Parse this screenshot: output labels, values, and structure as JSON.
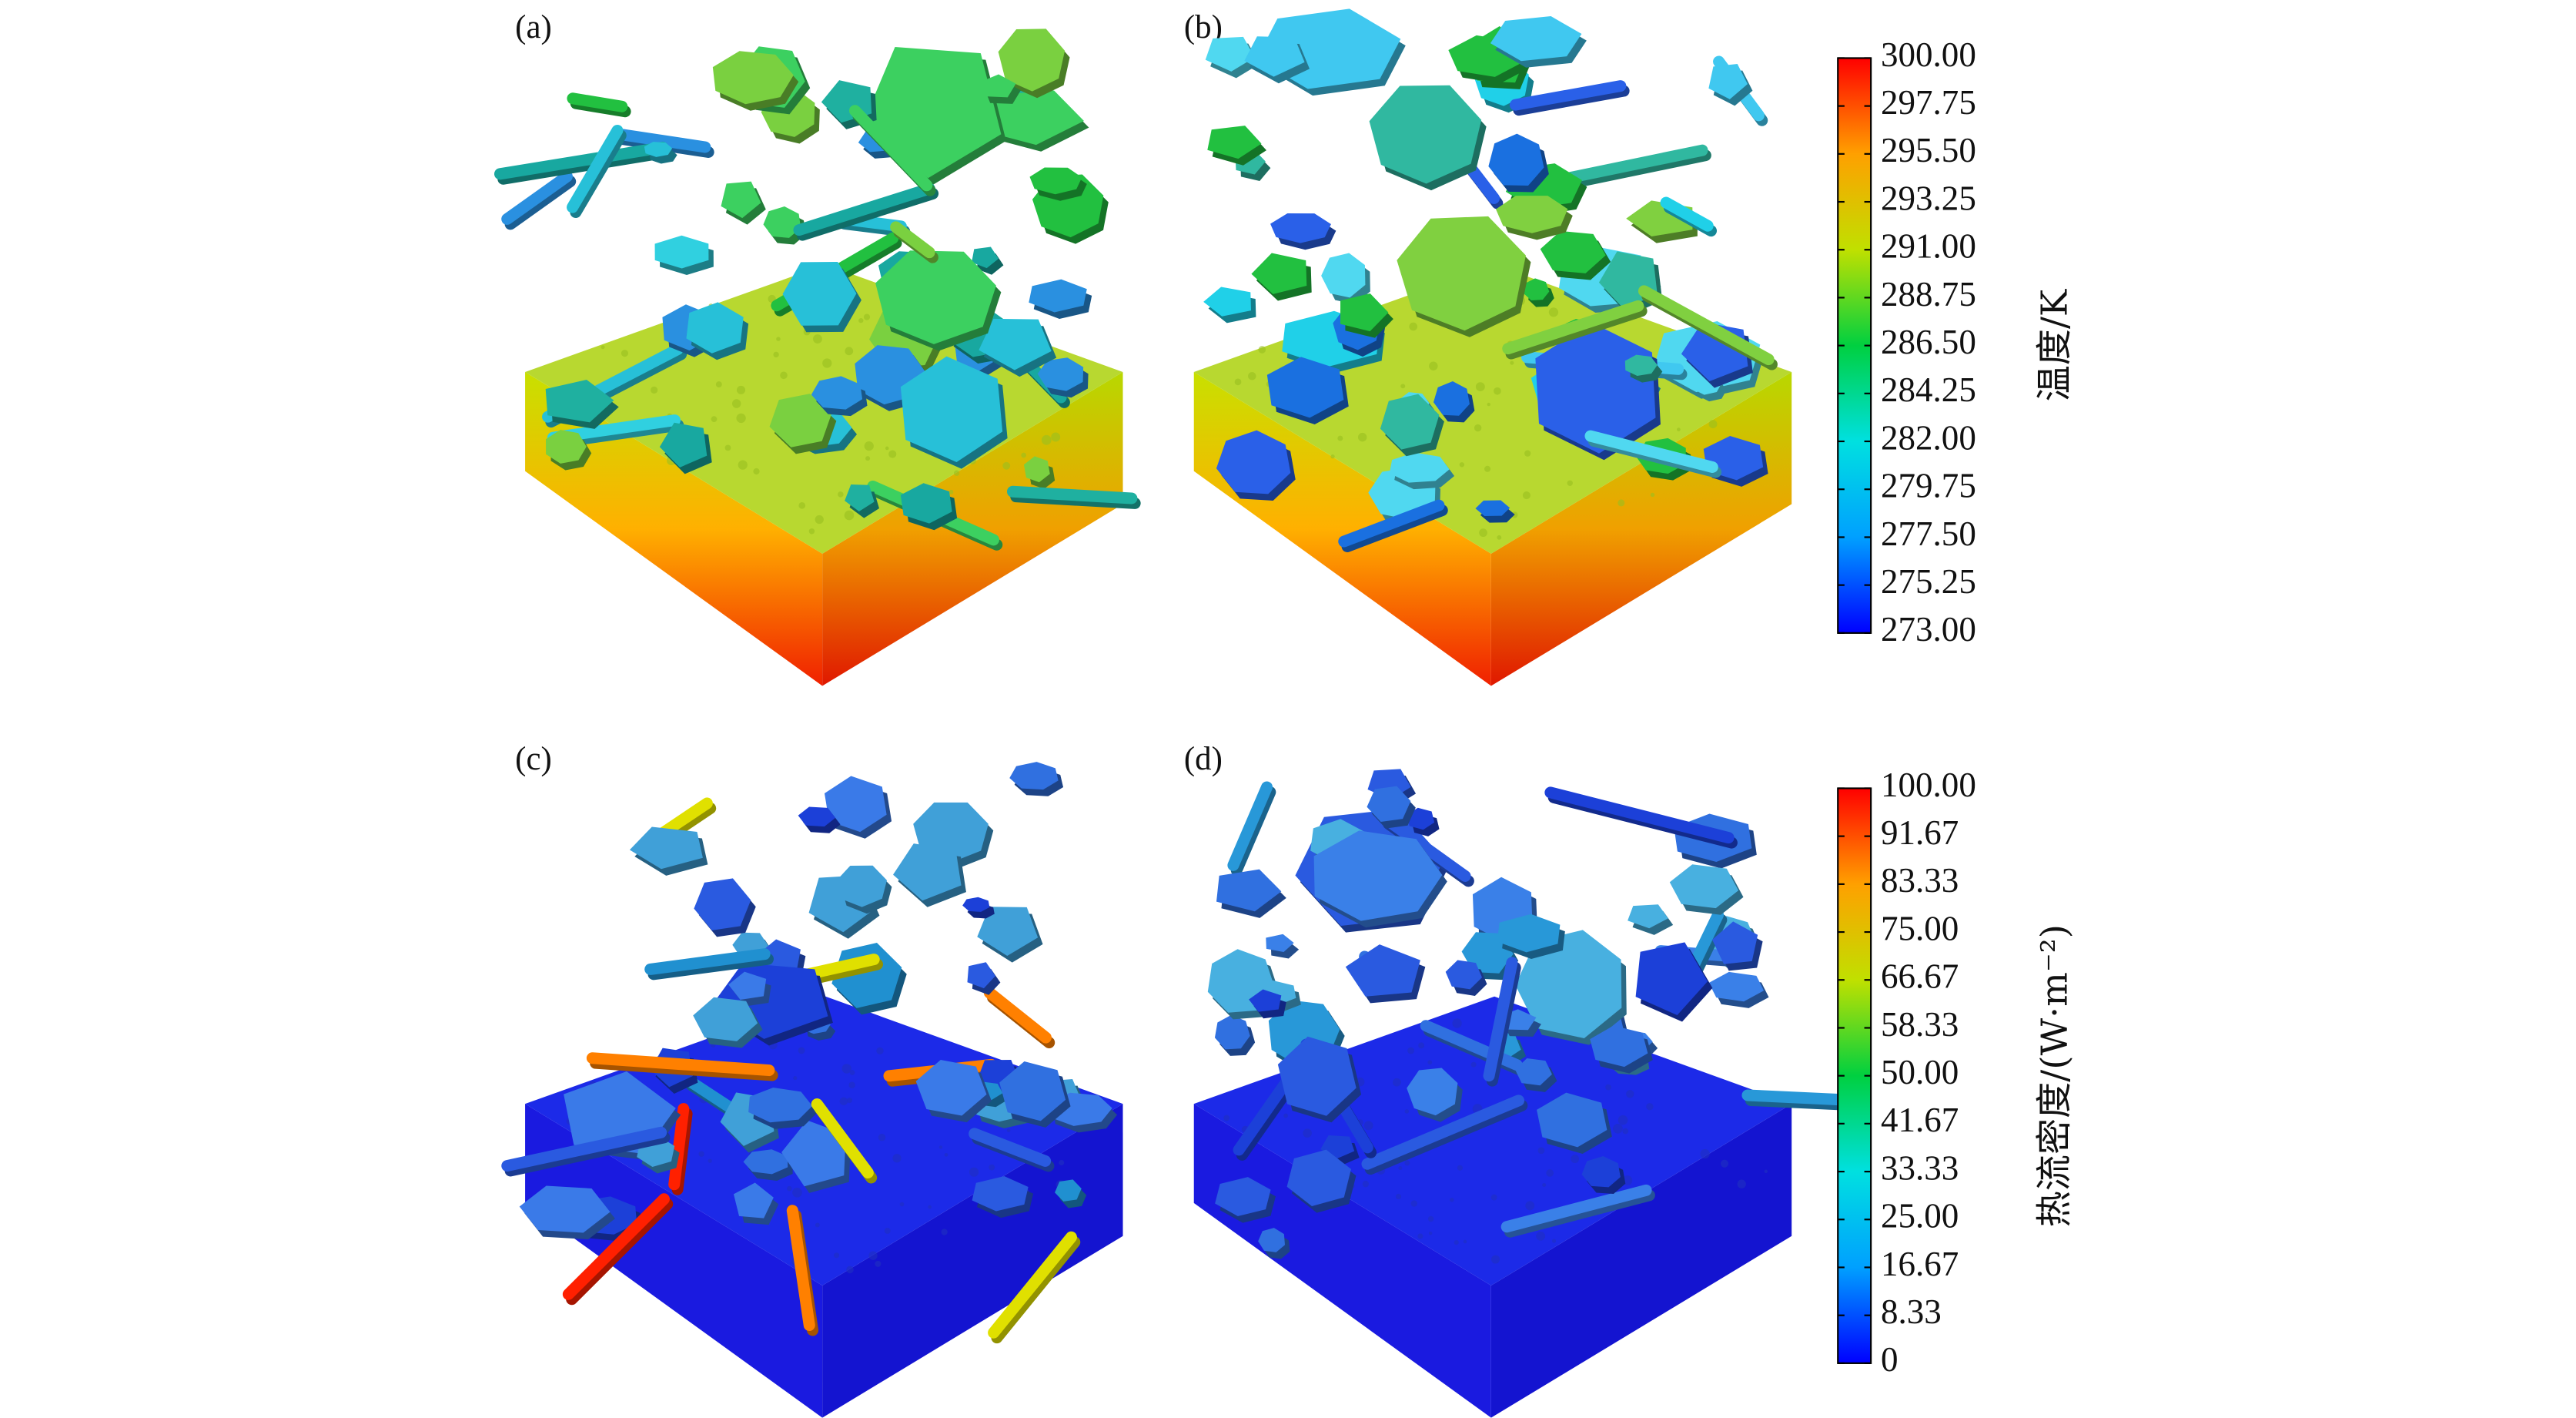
{
  "panels": [
    {
      "label": "(a)"
    },
    {
      "label": "(b)"
    },
    {
      "label": "(c)"
    },
    {
      "label": "(d)"
    }
  ],
  "colorbars": [
    {
      "label": "温度/K",
      "range": [
        273,
        300
      ],
      "colors": [
        "#0000ff",
        "#00a0ff",
        "#00e0e0",
        "#00d040",
        "#c0e000",
        "#ffa000",
        "#ff0000"
      ],
      "ticks": [
        {
          "value": 300,
          "label": "300.00"
        },
        {
          "value": 297.75,
          "label": "297.75"
        },
        {
          "value": 295.5,
          "label": "295.50"
        },
        {
          "value": 293.25,
          "label": "293.25"
        },
        {
          "value": 291,
          "label": "291.00"
        },
        {
          "value": 288.75,
          "label": "288.75"
        },
        {
          "value": 286.5,
          "label": "286.50"
        },
        {
          "value": 284.25,
          "label": "284.25"
        },
        {
          "value": 282,
          "label": "282.00"
        },
        {
          "value": 279.75,
          "label": "279.75"
        },
        {
          "value": 277.5,
          "label": "277.50"
        },
        {
          "value": 275.25,
          "label": "275.25"
        },
        {
          "value": 273,
          "label": "273.00"
        }
      ]
    },
    {
      "label": "热流密度/(W·m⁻²)",
      "range": [
        0,
        100
      ],
      "colors": [
        "#0000ff",
        "#00a0ff",
        "#00e0e0",
        "#00d040",
        "#c0e000",
        "#ffa000",
        "#ff0000"
      ],
      "ticks": [
        {
          "value": 100,
          "label": "100.00"
        },
        {
          "value": 91.67,
          "label": "91.67"
        },
        {
          "value": 83.33,
          "label": "83.33"
        },
        {
          "value": 75,
          "label": "75.00"
        },
        {
          "value": 66.67,
          "label": "66.67"
        },
        {
          "value": 58.33,
          "label": "58.33"
        },
        {
          "value": 50,
          "label": "50.00"
        },
        {
          "value": 41.67,
          "label": "41.67"
        },
        {
          "value": 33.33,
          "label": "33.33"
        },
        {
          "value": 25,
          "label": "25.00"
        },
        {
          "value": 16.67,
          "label": "16.67"
        },
        {
          "value": 8.33,
          "label": "8.33"
        },
        0
      ]
    }
  ]
}
